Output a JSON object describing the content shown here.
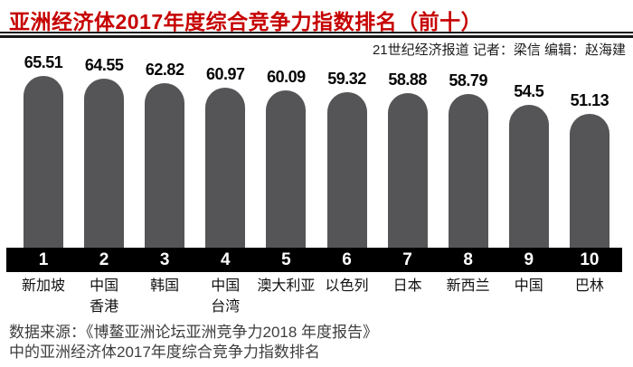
{
  "header": {
    "title": "亚洲经济体2017年度综合竞争力指数排名（前十）",
    "byline": "21世纪经济报道 记者：梁信 编辑：赵海建",
    "title_color": "#c60000"
  },
  "chart_data": {
    "type": "bar",
    "title": "亚洲经济体2017年度综合竞争力指数排名（前十）",
    "ranks": [
      1,
      2,
      3,
      4,
      5,
      6,
      7,
      8,
      9,
      10
    ],
    "categories": [
      "新加坡",
      "中国香港",
      "韩国",
      "中国台湾",
      "澳大利亚",
      "以色列",
      "日本",
      "新西兰",
      "中国",
      "巴林"
    ],
    "category_lines": [
      [
        "新加坡"
      ],
      [
        "中国",
        "香港"
      ],
      [
        "韩国"
      ],
      [
        "中国",
        "台湾"
      ],
      [
        "澳大利亚"
      ],
      [
        "以色列"
      ],
      [
        "日本"
      ],
      [
        "新西兰"
      ],
      [
        "中国"
      ],
      [
        "巴林"
      ]
    ],
    "values": [
      65.51,
      64.55,
      62.82,
      60.97,
      60.09,
      59.32,
      58.88,
      58.79,
      54.5,
      51.13
    ],
    "value_labels": [
      "65.51",
      "64.55",
      "62.82",
      "60.97",
      "60.09",
      "59.32",
      "58.88",
      "58.79",
      "54.5",
      "51.13"
    ],
    "xlabel": "",
    "ylabel": "",
    "ylim": [
      0,
      70
    ],
    "grid": false,
    "legend": "none",
    "bar_color": "#555557",
    "rank_strip_color": "#000000",
    "rank_text_color": "#ffffff"
  },
  "footer": {
    "line1": "数据来源：《博鳌亚洲论坛亚洲竞争力2018 年度报告》",
    "line2": "中的亚洲经济体2017年度综合竞争力指数排名"
  }
}
